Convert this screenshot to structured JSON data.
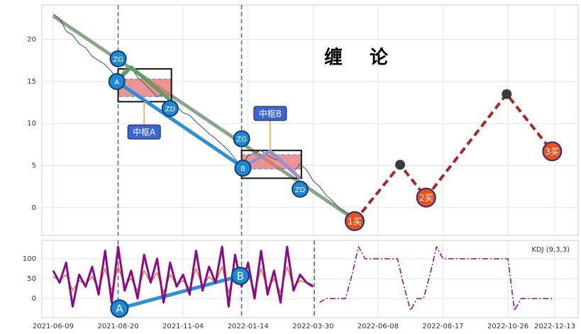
{
  "chart_data": [
    {
      "type": "line",
      "color": "#3d4a66",
      "x": [
        0,
        5,
        10,
        15,
        20,
        25,
        30,
        35,
        40,
        45,
        50,
        55,
        60,
        65,
        70,
        75,
        80,
        85,
        90,
        95,
        100,
        105,
        110,
        115,
        120,
        125,
        130,
        135,
        140,
        145,
        150,
        155,
        160,
        165,
        170,
        175,
        180,
        185,
        190,
        195,
        200,
        205,
        210,
        215,
        220,
        225,
        230
      ],
      "values": [
        23,
        22.5,
        21,
        20.5,
        19.5,
        19,
        18,
        17.5,
        17,
        16.2,
        15,
        16.5,
        16.7,
        15.5,
        14.8,
        14,
        13.2,
        13.5,
        12.8,
        12,
        11.3,
        11,
        10.2,
        9.5,
        8.8,
        8.2,
        7.5,
        6.8,
        5.8,
        4.8,
        6.2,
        6.5,
        6.8,
        6.2,
        5.8,
        5.5,
        4.8,
        4.2,
        5.2,
        4.5,
        3.2,
        2.5,
        1.5,
        0.8,
        0,
        -0.5,
        -1
      ],
      "xlim": [
        -8.7,
        404
      ],
      "ylim": [
        -3.3,
        24.1
      ],
      "yticks": [
        0,
        5,
        10,
        15,
        20
      ],
      "grid": true,
      "trend": {
        "x": [
          0,
          232
        ],
        "values": [
          22.8,
          -1.4
        ],
        "color": "#8aa58a"
      },
      "strokes": [
        {
          "x": [
            49,
            146
          ],
          "values": [
            15,
            4.8
          ],
          "color": "#2e8fd6"
        },
        {
          "x": [
            49,
            60,
            90
          ],
          "values": [
            15,
            16.7,
            12.8
          ],
          "color": "#5e9e5e"
        },
        {
          "x": [
            146,
            167,
            190
          ],
          "values": [
            4.8,
            6.7,
            3.5
          ],
          "color": "#9b8fc9"
        }
      ],
      "pivots": [
        {
          "xrange": [
            50,
            91
          ],
          "outer": [
            12.6,
            16.5
          ],
          "inner": [
            13.2,
            15.3
          ]
        },
        {
          "xrange": [
            145,
            191
          ],
          "outer": [
            3.5,
            6.8
          ],
          "inner": [
            4.6,
            6.3
          ]
        }
      ],
      "points": [
        {
          "label": "ZG",
          "x": 50,
          "y": 17.7
        },
        {
          "label": "A",
          "x": 49,
          "y": 15
        },
        {
          "label": "ZD",
          "x": 90,
          "y": 11.8
        },
        {
          "label": "ZG",
          "x": 145,
          "y": 8.2
        },
        {
          "label": "B",
          "x": 146,
          "y": 4.7
        },
        {
          "label": "ZD",
          "x": 190,
          "y": 2.2
        }
      ],
      "callouts": [
        {
          "label": "中枢A",
          "x": 70,
          "y": 9,
          "to": 12.6
        },
        {
          "label": "中枢B",
          "x": 167,
          "y": 11.2,
          "to": 6.8
        }
      ],
      "forecast": {
        "x": [
          232,
          267,
          287,
          349,
          384
        ],
        "values": [
          -1.6,
          5.1,
          1.2,
          13.5,
          6.7
        ],
        "labels": [
          "1买",
          null,
          "2买",
          null,
          "3买"
        ],
        "color": "#a52a2a"
      },
      "art": [
        "缠",
        "论"
      ],
      "vlines": [
        50,
        145
      ]
    },
    {
      "type": "line",
      "title": "KDJ (9,3,3)",
      "xlim": [
        -8.7,
        404
      ],
      "ylim": [
        -48,
        146
      ],
      "yticks": [
        0,
        50,
        100
      ],
      "grid": true,
      "xticks": [
        {
          "value": 0,
          "label": "2021-06-09"
        },
        {
          "value": 50,
          "label": "2021-08-20"
        },
        {
          "value": 100,
          "label": "2021-11-04"
        },
        {
          "value": 150,
          "label": "2022-01-14"
        },
        {
          "value": 200,
          "label": "2022-03-30"
        },
        {
          "value": 250,
          "label": "2022-06-08"
        },
        {
          "value": 300,
          "label": "2022-08-17"
        },
        {
          "value": 350,
          "label": "2022-10-26"
        },
        {
          "value": 386,
          "label": "2022-12-13"
        }
      ],
      "x": [
        0,
        5,
        10,
        15,
        20,
        25,
        30,
        35,
        40,
        45,
        50,
        55,
        60,
        65,
        70,
        75,
        80,
        85,
        90,
        95,
        100,
        105,
        110,
        115,
        120,
        125,
        130,
        135,
        140,
        145,
        150,
        155,
        160,
        165,
        170,
        175,
        180,
        185,
        190,
        195,
        200
      ],
      "series": [
        {
          "color": "#e0792a",
          "values": [
            55,
            45,
            60,
            20,
            45,
            35,
            55,
            25,
            75,
            20,
            80,
            35,
            50,
            20,
            70,
            40,
            65,
            15,
            60,
            35,
            45,
            25,
            75,
            30,
            55,
            40,
            80,
            15,
            70,
            35,
            60,
            20,
            75,
            25,
            50,
            15,
            80,
            30,
            45,
            40,
            35
          ]
        },
        {
          "color": "#8b0a8b",
          "values": [
            70,
            40,
            90,
            -20,
            60,
            30,
            80,
            10,
            120,
            -10,
            130,
            20,
            70,
            0,
            110,
            40,
            100,
            -10,
            90,
            30,
            60,
            10,
            120,
            20,
            80,
            40,
            130,
            -20,
            110,
            30,
            90,
            0,
            120,
            10,
            70,
            -10,
            130,
            20,
            60,
            40,
            30
          ]
        }
      ],
      "forecast": {
        "color": "#8b0a8b",
        "x": [
          205,
          210,
          215,
          220,
          225,
          230,
          235,
          240,
          245,
          250,
          255,
          260,
          265,
          270,
          275,
          280,
          285,
          290,
          295,
          300,
          305,
          310,
          315,
          320,
          325,
          330,
          335,
          340,
          345,
          350,
          355,
          360,
          365,
          370,
          375,
          380,
          385
        ],
        "values": [
          -10,
          0,
          0,
          0,
          0,
          60,
          130,
          100,
          100,
          100,
          100,
          100,
          100,
          30,
          -30,
          0,
          0,
          60,
          130,
          100,
          100,
          100,
          100,
          100,
          100,
          100,
          100,
          100,
          100,
          100,
          -30,
          0,
          0,
          0,
          0,
          0,
          0
        ]
      },
      "strokes": [
        {
          "x": [
            51,
            144
          ],
          "values": [
            -25,
            57
          ],
          "color": "#2e8fd6"
        }
      ],
      "points": [
        {
          "label": "A",
          "x": 51,
          "y": -25
        },
        {
          "label": "B",
          "x": 144,
          "y": 57
        }
      ],
      "vlines": [
        50,
        145,
        201
      ]
    }
  ]
}
